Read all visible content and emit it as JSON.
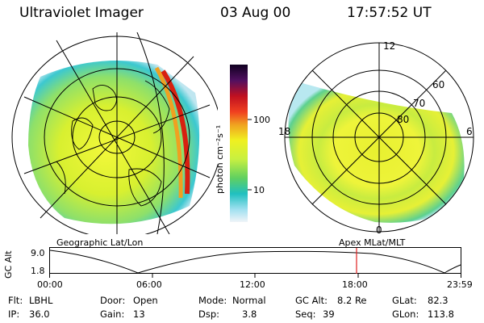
{
  "header": {
    "instrument": "Ultraviolet Imager",
    "date": "03 Aug 00",
    "time": "17:57:52 UT"
  },
  "colorbar": {
    "unit_label": "photon cm⁻²s⁻¹",
    "ticks": [
      "100",
      "10"
    ]
  },
  "panels": {
    "left_caption": "Geographic Lat/Lon",
    "right_caption": "Apex MLat/MLT",
    "polar_labels": {
      "mlt_top": "12",
      "mlt_left": "18",
      "mlt_right": "6",
      "mlt_bottom": "0",
      "mlat_60": "60",
      "mlat_70": "70",
      "mlat_80": "80"
    }
  },
  "timeline": {
    "ylabel": "GC Alt",
    "yticks": [
      "9.0",
      "1.8"
    ],
    "xticks": [
      "00:00",
      "06:00",
      "12:00",
      "18:00",
      "23:59"
    ]
  },
  "info": {
    "row1": [
      {
        "label": "Flt:",
        "value": "LBHL"
      },
      {
        "label": "Door:",
        "value": "Open"
      },
      {
        "label": "Mode:",
        "value": "Normal"
      },
      {
        "label": "GC Alt:",
        "value": "8.2 Re"
      },
      {
        "label": "GLat:",
        "value": "82.3"
      }
    ],
    "row2": [
      {
        "label": "IP:",
        "value": "36.0"
      },
      {
        "label": "Gain:",
        "value": "13"
      },
      {
        "label": "Dsp:",
        "value": "3.8"
      },
      {
        "label": "Seq:",
        "value": "39"
      },
      {
        "label": "GLon:",
        "value": "113.8"
      }
    ]
  },
  "colors": {
    "low": "#20c8d8",
    "mid": "#e8f020",
    "high": "#d82010",
    "marker": "#e02020"
  }
}
